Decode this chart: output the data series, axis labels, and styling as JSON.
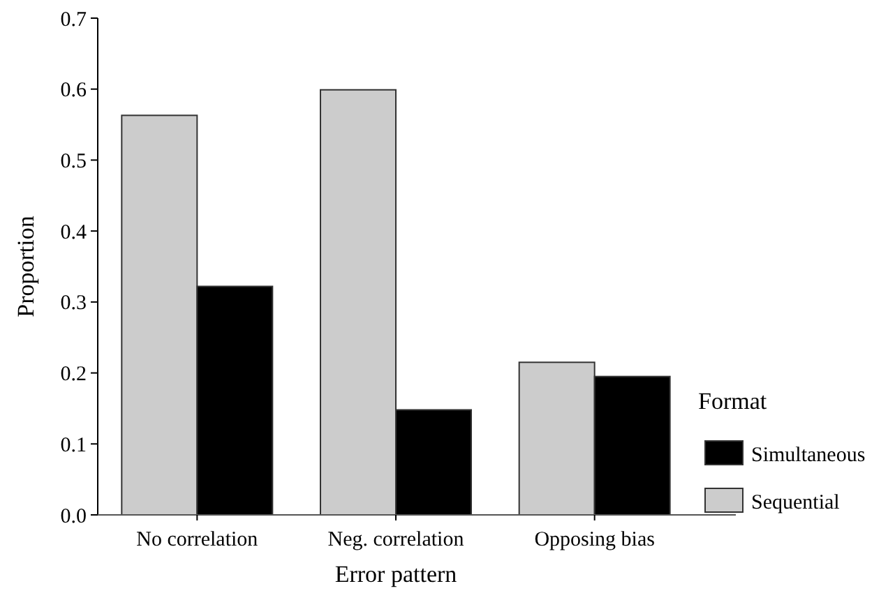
{
  "chart_data": {
    "type": "bar",
    "xlabel": "Error pattern",
    "ylabel": "Proportion",
    "legend_title": "Format",
    "categories": [
      "No correlation",
      "Neg. correlation",
      "Opposing bias"
    ],
    "series": [
      {
        "name": "Sequential",
        "color": "#cccccc",
        "values": [
          0.563,
          0.599,
          0.215
        ]
      },
      {
        "name": "Simultaneous",
        "color": "#000000",
        "values": [
          0.322,
          0.148,
          0.195
        ]
      }
    ],
    "ylim": [
      0,
      0.7
    ],
    "yticks": [
      {
        "value": 0,
        "label": "0.0"
      },
      0.1,
      0.2,
      0.3,
      0.4,
      0.5,
      0.6,
      0.7
    ],
    "legend": "right",
    "grid": false
  }
}
